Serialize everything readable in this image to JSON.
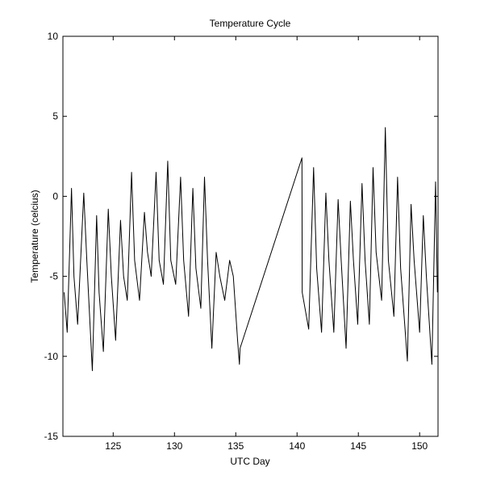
{
  "chart_data": {
    "type": "line",
    "title": "Temperature Cycle",
    "xlabel": "UTC Day",
    "ylabel": "Temperature (celcius)",
    "xlim": [
      120.9,
      151.5
    ],
    "ylim": [
      -15,
      10
    ],
    "xticks": [
      125,
      130,
      135,
      140,
      145,
      150
    ],
    "yticks": [
      -15,
      -10,
      -5,
      0,
      5,
      10
    ],
    "grid": false,
    "series": [
      {
        "color": "#000000",
        "x": [
          121.0,
          121.25,
          121.6,
          121.8,
          122.1,
          122.6,
          122.85,
          123.3,
          123.65,
          123.85,
          124.2,
          124.6,
          124.85,
          125.2,
          125.6,
          125.85,
          126.15,
          126.5,
          126.75,
          127.15,
          127.55,
          127.8,
          128.1,
          128.5,
          128.75,
          129.1,
          129.45,
          129.7,
          130.1,
          130.5,
          130.75,
          131.15,
          131.5,
          131.75,
          132.15,
          132.45,
          132.7,
          133.05,
          133.4,
          133.7,
          134.1,
          134.5,
          134.8,
          135.15,
          135.3,
          135.35,
          140.4,
          140.42,
          140.95,
          141.35,
          141.6,
          142.0,
          142.35,
          142.6,
          143.0,
          143.35,
          143.6,
          144.0,
          144.35,
          144.6,
          144.95,
          145.3,
          145.55,
          145.9,
          146.2,
          146.45,
          146.9,
          147.2,
          147.45,
          147.9,
          148.2,
          148.45,
          149.0,
          149.3,
          149.55,
          150.0,
          150.3,
          150.55,
          151.0,
          151.3,
          151.45
        ],
        "values": [
          -6.0,
          -8.5,
          0.5,
          -5,
          -8.0,
          0.2,
          -4,
          -10.9,
          -1.2,
          -6,
          -9.7,
          -0.8,
          -5,
          -9.0,
          -1.5,
          -5,
          -6.5,
          1.5,
          -4,
          -6.5,
          -1.0,
          -3.5,
          -5.0,
          1.5,
          -4,
          -5.5,
          2.2,
          -4,
          -5.5,
          1.2,
          -4,
          -7.5,
          0.5,
          -4.5,
          -7.0,
          1.2,
          -4,
          -9.5,
          -3.5,
          -5,
          -6.5,
          -4.0,
          -5,
          -9.0,
          -10.5,
          -9.5,
          2.4,
          -6.0,
          -8.3,
          1.8,
          -4.5,
          -8.5,
          0.2,
          -4,
          -8.5,
          -0.2,
          -4,
          -9.5,
          -0.3,
          -4,
          -8.0,
          0.8,
          -4,
          -8.0,
          1.8,
          -3.5,
          -6.5,
          4.3,
          -4,
          -7.5,
          1.2,
          -4.5,
          -10.3,
          -0.5,
          -4,
          -8.5,
          -1.2,
          -5,
          -10.5,
          0.9,
          -6
        ]
      }
    ]
  }
}
